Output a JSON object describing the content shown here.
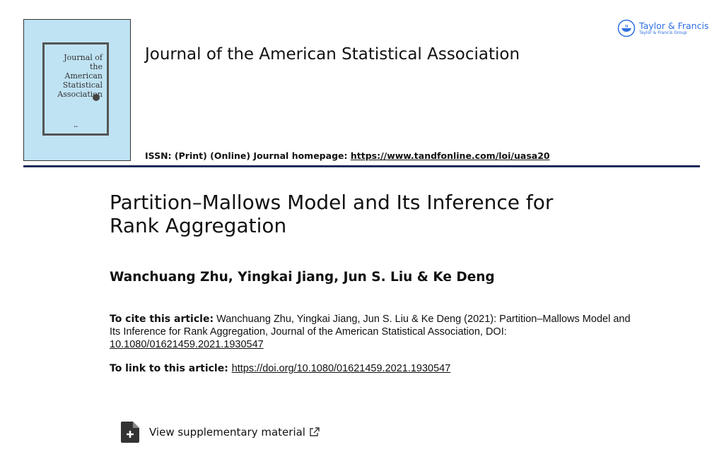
{
  "header": {
    "cover_title": "Journal of the American Statistical Association",
    "journal_title": "Journal of the American Statistical Association",
    "issn_label": "ISSN: (Print) (Online) Journal homepage: ",
    "homepage_url": "https://www.tandfonline.com/loi/uasa20",
    "publisher": "Taylor & Francis",
    "publisher_group": "Taylor & Francis Group",
    "brand_color": "#2d6ee0",
    "rule_color": "#1d2b5a"
  },
  "article": {
    "title": "Partition–Mallows Model and Its Inference for Rank Aggregation",
    "authors": "Wanchuang Zhu, Yingkai Jiang, Jun S. Liu & Ke Deng",
    "cite_label": "To cite this article:",
    "cite_text": " Wanchuang Zhu, Yingkai Jiang, Jun S. Liu & Ke Deng (2021): Partition–Mallows Model and Its Inference for Rank Aggregation, Journal of the American Statistical Association, DOI: ",
    "doi": "10.1080/01621459.2021.1930547",
    "link_label": "To link to this article: ",
    "link_url": "https://doi.org/10.1080/01621459.2021.1930547",
    "supplementary_label": "View supplementary material"
  }
}
